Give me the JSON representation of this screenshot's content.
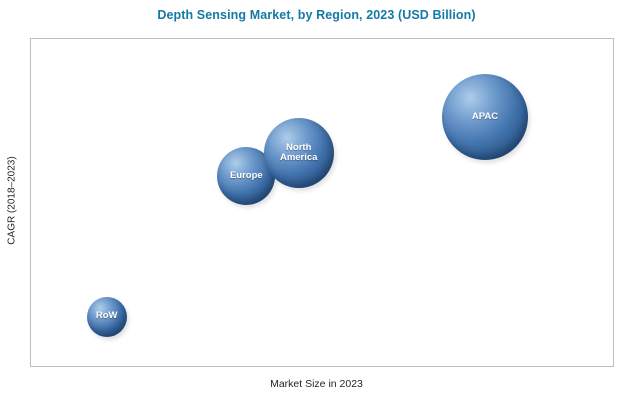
{
  "header": {
    "title": "Depth Sensing Market, by Region, 2023 (USD Billion)"
  },
  "axes": {
    "x_label": "Market Size in 2023",
    "y_label": "CAGR (2018–2023)"
  },
  "colors": {
    "title_text": "#1579a5",
    "bubble_base": "#4172ac",
    "bubble_highlight": "#aecde9",
    "bubble_shadow": "#1f4168",
    "plot_border": "#bfbfbf",
    "axis_text": "#262626",
    "bubble_label_text": "#ffffff"
  },
  "chart_data": {
    "type": "scatter",
    "subtype": "bubble",
    "title": "Depth Sensing Market, by Region, 2023 (USD Billion)",
    "xlabel": "Market Size in 2023",
    "ylabel": "CAGR (2018–2023)",
    "axis_ticks_shown": false,
    "grid": false,
    "legend": "none",
    "value_units": "relative fraction of plot area (no numeric ticks shown in source image)",
    "points": [
      {
        "label": "RoW",
        "x": 0.13,
        "y": 0.15,
        "radius_px": 20
      },
      {
        "label": "Europe",
        "x": 0.37,
        "y": 0.58,
        "radius_px": 29
      },
      {
        "label": "North America",
        "x": 0.46,
        "y": 0.65,
        "radius_px": 35
      },
      {
        "label": "APAC",
        "x": 0.78,
        "y": 0.76,
        "radius_px": 43
      }
    ]
  }
}
